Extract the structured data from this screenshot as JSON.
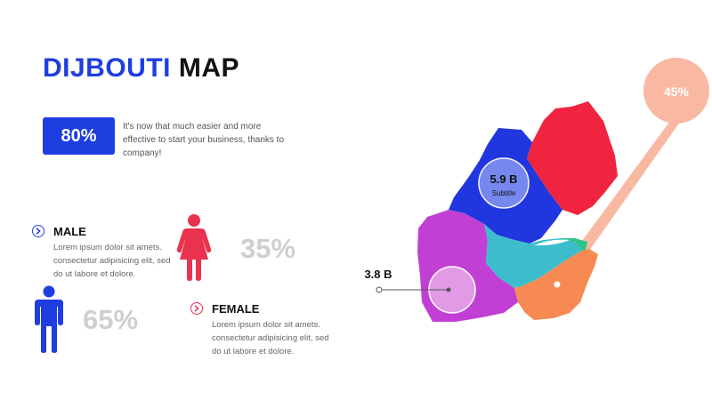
{
  "title": {
    "highlight": "DIJBOUTI",
    "rest": "MAP"
  },
  "stat": {
    "value": "80%",
    "description": "It's now that much easier and more effective to start your business, thanks to company!"
  },
  "male": {
    "label": "MALE",
    "text": "Lorem ipsum dolor sit amets. consectetur adipisicing elit, sed do ut labore et dolore.",
    "percent": "65%",
    "icon": "male-person-icon"
  },
  "female": {
    "label": "FEMALE",
    "text": "Lorem ipsum dolor sit amets. consectetur adipisicing elit, sed do ut labore et dolore.",
    "percent": "35%",
    "icon": "female-person-icon"
  },
  "map": {
    "regions": [
      {
        "name": "north-region",
        "color": "#f0243f"
      },
      {
        "name": "northwest-region",
        "color": "#2036df"
      },
      {
        "name": "southwest-region",
        "color": "#c13fd4"
      },
      {
        "name": "central-region",
        "color": "#3dbdcc"
      },
      {
        "name": "east-region",
        "color": "#2fc48c"
      },
      {
        "name": "southeast-region",
        "color": "#f78a52"
      }
    ],
    "bubble_value": "5.9 B",
    "bubble_subtitle": "Subtitle",
    "callout_value": "3.8 B",
    "pin_value": "45%"
  },
  "colors": {
    "accent_blue": "#1f3ee0",
    "accent_red": "#e8324e",
    "pin_peach": "#f9b8a2"
  }
}
